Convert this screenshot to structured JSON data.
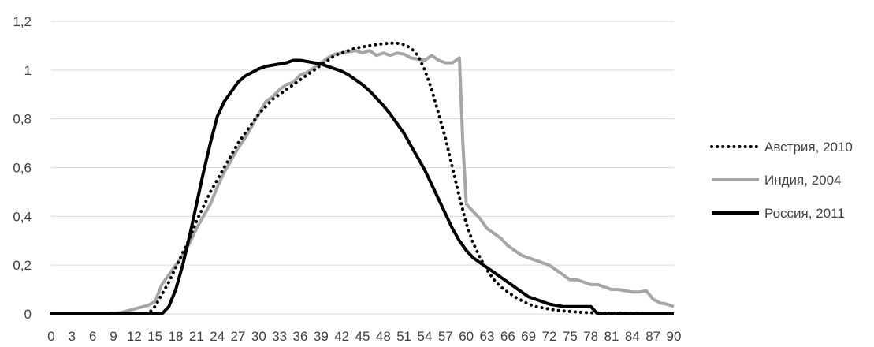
{
  "chart_data": {
    "type": "line",
    "title": "",
    "xlabel": "",
    "ylabel": "",
    "xlim": [
      0,
      90
    ],
    "ylim": [
      0,
      1.2
    ],
    "grid": true,
    "legend_position": "right",
    "x_ticks": [
      "0",
      "3",
      "6",
      "9",
      "12",
      "15",
      "18",
      "21",
      "24",
      "27",
      "30",
      "33",
      "36",
      "39",
      "42",
      "45",
      "48",
      "51",
      "54",
      "57",
      "60",
      "63",
      "66",
      "69",
      "72",
      "75",
      "78",
      "81",
      "84",
      "87",
      "90"
    ],
    "y_ticks": [
      "0",
      "0,2",
      "0,4",
      "0,6",
      "0,8",
      "1",
      "1,2"
    ],
    "series": [
      {
        "name": "Австрия, 2010",
        "color": "#000000",
        "style": "dotted",
        "x": [
          0,
          14,
          15,
          16,
          17,
          18,
          19,
          20,
          21,
          22,
          23,
          24,
          25,
          26,
          27,
          28,
          29,
          30,
          31,
          32,
          33,
          34,
          35,
          36,
          37,
          38,
          39,
          40,
          41,
          42,
          43,
          44,
          45,
          46,
          47,
          48,
          49,
          50,
          51,
          52,
          53,
          54,
          55,
          56,
          57,
          58,
          59,
          60,
          61,
          62,
          63,
          64,
          65,
          66,
          67,
          68,
          69,
          70,
          71,
          72,
          73,
          74,
          75,
          76,
          77,
          78,
          79,
          80,
          81,
          82,
          83,
          84,
          85,
          86,
          87,
          88,
          89,
          90
        ],
        "y": [
          0,
          0,
          0.03,
          0.08,
          0.13,
          0.19,
          0.25,
          0.31,
          0.38,
          0.44,
          0.5,
          0.55,
          0.6,
          0.65,
          0.7,
          0.74,
          0.78,
          0.82,
          0.85,
          0.88,
          0.9,
          0.92,
          0.94,
          0.96,
          0.98,
          1.0,
          1.02,
          1.04,
          1.06,
          1.07,
          1.08,
          1.09,
          1.095,
          1.1,
          1.105,
          1.108,
          1.11,
          1.11,
          1.105,
          1.09,
          1.06,
          1.0,
          0.92,
          0.82,
          0.72,
          0.6,
          0.48,
          0.37,
          0.29,
          0.23,
          0.18,
          0.14,
          0.11,
          0.09,
          0.07,
          0.055,
          0.04,
          0.03,
          0.025,
          0.02,
          0.015,
          0.012,
          0.01,
          0.008,
          0.006,
          0.005,
          0.004,
          0.003,
          0.002,
          0.002,
          0.001,
          0.001,
          0.001,
          0,
          0,
          0,
          0,
          0
        ]
      },
      {
        "name": "Индия, 2004",
        "color": "#a6a6a6",
        "style": "solid",
        "x": [
          0,
          8,
          10,
          12,
          14,
          15,
          16,
          17,
          18,
          19,
          20,
          21,
          22,
          23,
          24,
          25,
          26,
          27,
          28,
          29,
          30,
          31,
          32,
          33,
          34,
          35,
          36,
          37,
          38,
          39,
          40,
          41,
          42,
          43,
          44,
          45,
          46,
          47,
          48,
          49,
          50,
          51,
          52,
          53,
          54,
          55,
          56,
          57,
          58,
          59,
          59.5,
          60,
          61,
          62,
          63,
          64,
          65,
          66,
          67,
          68,
          69,
          70,
          71,
          72,
          73,
          74,
          75,
          76,
          77,
          78,
          79,
          80,
          81,
          82,
          83,
          84,
          85,
          86,
          87,
          88,
          89,
          90
        ],
        "y": [
          0,
          0,
          0.005,
          0.02,
          0.035,
          0.05,
          0.12,
          0.16,
          0.2,
          0.24,
          0.29,
          0.35,
          0.4,
          0.45,
          0.52,
          0.58,
          0.63,
          0.68,
          0.72,
          0.77,
          0.82,
          0.87,
          0.89,
          0.92,
          0.94,
          0.95,
          0.98,
          0.99,
          1.01,
          1.03,
          1.05,
          1.065,
          1.07,
          1.075,
          1.08,
          1.07,
          1.08,
          1.06,
          1.07,
          1.06,
          1.07,
          1.065,
          1.05,
          1.045,
          1.04,
          1.06,
          1.04,
          1.03,
          1.03,
          1.05,
          0.7,
          0.45,
          0.42,
          0.39,
          0.35,
          0.33,
          0.31,
          0.28,
          0.26,
          0.24,
          0.23,
          0.22,
          0.21,
          0.2,
          0.18,
          0.16,
          0.14,
          0.14,
          0.13,
          0.12,
          0.12,
          0.11,
          0.1,
          0.1,
          0.095,
          0.09,
          0.09,
          0.095,
          0.06,
          0.045,
          0.04,
          0.03
        ]
      },
      {
        "name": "Россия, 2011",
        "color": "#000000",
        "style": "solid",
        "x": [
          0,
          16,
          17,
          18,
          19,
          20,
          21,
          22,
          23,
          24,
          25,
          26,
          27,
          28,
          29,
          30,
          31,
          32,
          33,
          34,
          35,
          36,
          37,
          38,
          39,
          40,
          41,
          42,
          43,
          44,
          45,
          46,
          47,
          48,
          49,
          50,
          51,
          52,
          53,
          54,
          55,
          56,
          57,
          58,
          59,
          60,
          61,
          62,
          63,
          64,
          65,
          66,
          67,
          68,
          69,
          70,
          71,
          72,
          73,
          74,
          75,
          76,
          77,
          78,
          79,
          80,
          90
        ],
        "y": [
          0,
          0,
          0.03,
          0.1,
          0.2,
          0.32,
          0.45,
          0.58,
          0.7,
          0.81,
          0.87,
          0.91,
          0.95,
          0.975,
          0.99,
          1.005,
          1.015,
          1.02,
          1.025,
          1.03,
          1.04,
          1.04,
          1.035,
          1.03,
          1.025,
          1.015,
          1.005,
          0.995,
          0.98,
          0.96,
          0.94,
          0.915,
          0.885,
          0.855,
          0.82,
          0.78,
          0.74,
          0.69,
          0.64,
          0.59,
          0.53,
          0.47,
          0.41,
          0.35,
          0.3,
          0.26,
          0.23,
          0.21,
          0.19,
          0.17,
          0.15,
          0.13,
          0.11,
          0.09,
          0.07,
          0.06,
          0.05,
          0.04,
          0.035,
          0.03,
          0.03,
          0.03,
          0.03,
          0.03,
          0.0,
          0.0,
          0.0
        ]
      }
    ]
  }
}
